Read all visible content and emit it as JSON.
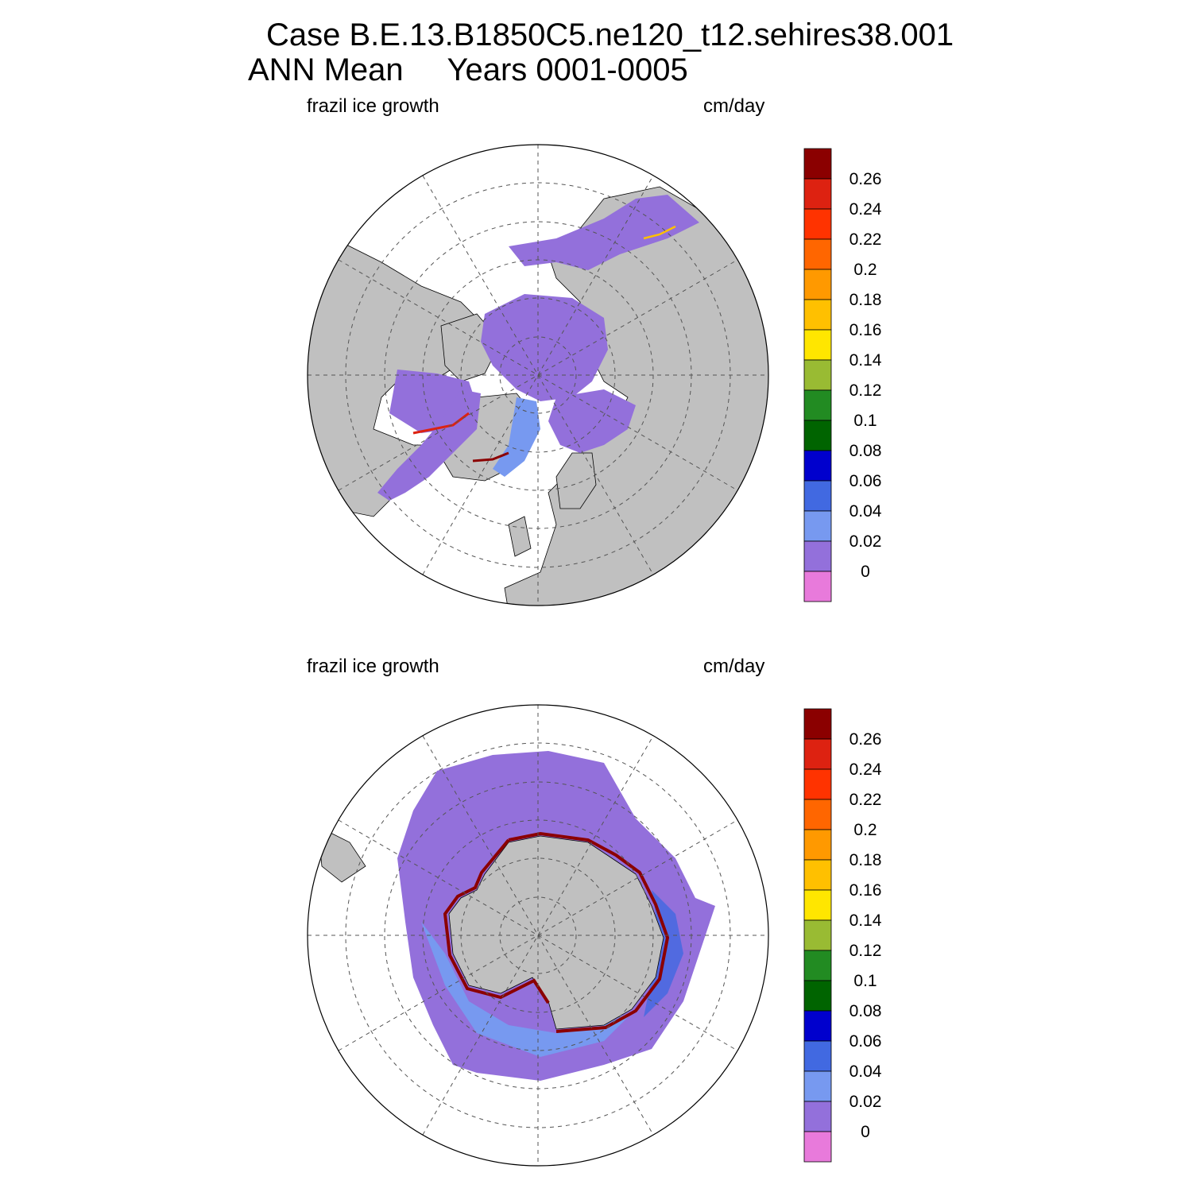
{
  "title": {
    "line1": "Case B.E.13.B1850C5.ne120_t12.sehires38.001",
    "line2": "ANN Mean     Years 0001-0005"
  },
  "panels": [
    {
      "id": "north",
      "left_label": "frazil ice growth",
      "right_label": "cm/day"
    },
    {
      "id": "south",
      "left_label": "frazil ice growth",
      "right_label": "cm/day"
    }
  ],
  "colorbar": {
    "levels": [
      "0.26",
      "0.24",
      "0.22",
      "0.2",
      "0.18",
      "0.16",
      "0.14",
      "0.12",
      "0.1",
      "0.08",
      "0.06",
      "0.04",
      "0.02",
      "0"
    ],
    "colors": [
      "#8b0000",
      "#dd2211",
      "#ff3300",
      "#ff6600",
      "#ff9900",
      "#ffc000",
      "#ffe600",
      "#99bb33",
      "#228b22",
      "#006400",
      "#0000cd",
      "#4169e1",
      "#7799f0",
      "#9370db",
      "#e87adb"
    ]
  },
  "map_colors": {
    "land": "#c0c0c0",
    "ocean": "#ffffff",
    "ice_base": "#9370db"
  }
}
